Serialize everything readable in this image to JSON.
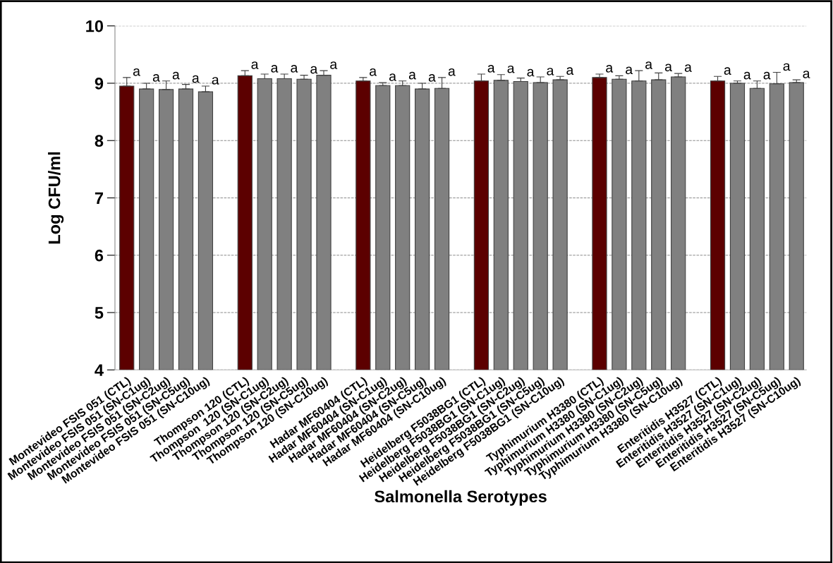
{
  "chart_data": {
    "type": "bar",
    "xlabel": "Salmonella Serotypes",
    "ylabel": "Log CFU/ml",
    "categories": [
      "Montevideo FSIS 051 (CTL)",
      "Montevideo FSIS 051 (SN-C1ug)",
      "Montevideo FSIS 051 (SN-C2ug)",
      "Montevideo FSIS 051 (SN-C5ug)",
      "Montevideo FSIS 051 (SN-C10ug)",
      null,
      "Thompson 120 (CTL)",
      "Thompson  120 (SN-C1ug)",
      "Thompson 120 (SN-C2ug)",
      "Thompson 120 (SN-C5ug)",
      "Thompson 120 (SN-C10ug)",
      null,
      "Hadar MF60404 (CTL)",
      "Hadar MF60404 (SN-C1ug)",
      "Hadar MF60404 (SN-C2ug)",
      "Hadar MF60404 (SN-C5ug)",
      "Hadar MF60404 (SN-C10ug)",
      null,
      "Heidelberg F5038BG1 (CTL)",
      "Heidelberg F5038BG1 (SN-C1ug)",
      "Heidelberg F5038BG1 (SN-C2ug)",
      "Heidelberg F5038BG1 (SN-C5ug)",
      "Heidelberg F5038BG1 (SN-C10ug)",
      null,
      "Typhimurium H3380 (CTL)",
      "Typhimurium H3380 (SN-C1ug)",
      "Typhimurium H3380 (SN-C2ug)",
      "Typhimurium H3380 (SN-C5ug)",
      "Typhimurium H3380 (SN-C10ug)",
      null,
      "Enteritidis H3527 (CTL)",
      "Enteritidis H3527 (SN-C1ug)",
      "Enteritidis H3527 (SN-C2ug)",
      "Enteritidis H3527 (SN-C5ug)",
      "Enteritidis H3527 (SN-C10ug)"
    ],
    "values": [
      8.95,
      8.9,
      8.89,
      8.9,
      8.85,
      null,
      9.13,
      9.08,
      9.08,
      9.07,
      9.14,
      null,
      9.04,
      8.96,
      8.96,
      8.9,
      8.91,
      null,
      9.04,
      9.05,
      9.03,
      9.01,
      9.06,
      null,
      9.1,
      9.07,
      9.04,
      9.06,
      9.11,
      null,
      9.04,
      9.0,
      8.91,
      8.99,
      9.01
    ],
    "errors": [
      [
        8.95,
        9.1
      ],
      [
        8.9,
        9.0
      ],
      [
        8.89,
        9.04
      ],
      [
        8.9,
        8.98
      ],
      [
        8.85,
        8.95
      ],
      null,
      [
        9.13,
        9.22
      ],
      [
        9.08,
        9.16
      ],
      [
        9.08,
        9.16
      ],
      [
        9.07,
        9.14
      ],
      [
        9.14,
        9.22
      ],
      null,
      [
        9.04,
        9.1
      ],
      [
        8.96,
        9.01
      ],
      [
        8.96,
        9.04
      ],
      [
        8.9,
        9.0
      ],
      [
        8.91,
        9.1
      ],
      null,
      [
        9.04,
        9.16
      ],
      [
        9.05,
        9.15
      ],
      [
        9.03,
        9.09
      ],
      [
        9.01,
        9.11
      ],
      [
        9.06,
        9.12
      ],
      null,
      [
        9.1,
        9.16
      ],
      [
        9.07,
        9.13
      ],
      [
        9.04,
        9.22
      ],
      [
        9.06,
        9.18
      ],
      [
        9.11,
        9.17
      ],
      null,
      [
        9.04,
        9.12
      ],
      [
        9.0,
        9.04
      ],
      [
        8.91,
        9.04
      ],
      [
        8.99,
        9.19
      ],
      [
        9.01,
        9.06
      ]
    ],
    "colors": [
      "#5c0000",
      "#808080",
      "#808080",
      "#808080",
      "#808080",
      null,
      "#5c0000",
      "#808080",
      "#808080",
      "#808080",
      "#808080",
      null,
      "#5c0000",
      "#808080",
      "#808080",
      "#808080",
      "#808080",
      null,
      "#5c0000",
      "#808080",
      "#808080",
      "#808080",
      "#808080",
      null,
      "#5c0000",
      "#808080",
      "#808080",
      "#808080",
      "#808080",
      null,
      "#5c0000",
      "#808080",
      "#808080",
      "#808080",
      "#808080"
    ],
    "value_labels": [
      "a",
      "a",
      "a",
      "a",
      "a",
      null,
      "a",
      "a",
      "a",
      "a",
      "a",
      null,
      "a",
      "a",
      "a",
      "a",
      "a",
      null,
      "a",
      "a",
      "a",
      "a",
      "a",
      null,
      "a",
      "a",
      "a",
      "a",
      "a",
      null,
      "a",
      "a",
      "a",
      "a",
      "a"
    ],
    "ylim": [
      4,
      10
    ],
    "yticks": [
      4,
      5,
      6,
      7,
      8,
      9,
      10
    ],
    "grid": "y"
  }
}
